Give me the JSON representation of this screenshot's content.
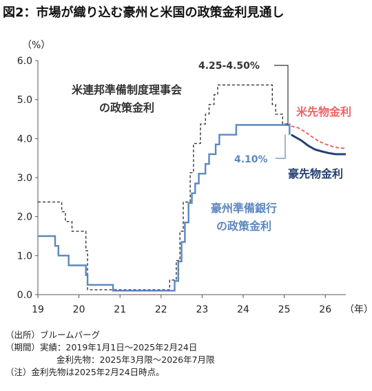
{
  "title": "図2：市場が織り込む豪州と米国の政策金利見通し",
  "chart_data": {
    "type": "line",
    "y_unit_label": "（%）",
    "x_unit_label": "（年）",
    "ylim": [
      0.0,
      6.0
    ],
    "xlim": [
      19.0,
      26.5
    ],
    "y_ticks": [
      "0.0",
      "1.0",
      "2.0",
      "3.0",
      "4.0",
      "5.0",
      "6.0"
    ],
    "x_ticks": [
      {
        "value": 19,
        "label": "19"
      },
      {
        "value": 20,
        "label": "20"
      },
      {
        "value": 21,
        "label": "21"
      },
      {
        "value": 22,
        "label": "22"
      },
      {
        "value": 23,
        "label": "23"
      },
      {
        "value": 24,
        "label": "24"
      },
      {
        "value": 25,
        "label": "25"
      },
      {
        "value": 26,
        "label": "26"
      }
    ],
    "grid": false,
    "series": [
      {
        "name": "米連邦準備制度理事会の政策金利",
        "style": "dashed",
        "color": "#333333",
        "step": true,
        "x": [
          19.0,
          19.58,
          19.67,
          19.83,
          20.17,
          20.21,
          22.21,
          22.37,
          22.46,
          22.54,
          22.71,
          22.79,
          22.96,
          23.08,
          23.17,
          23.29,
          23.38,
          23.58,
          24.71,
          24.79,
          24.96,
          25.15
        ],
        "y": [
          2.375,
          2.125,
          1.875,
          1.625,
          1.125,
          0.125,
          0.375,
          0.875,
          1.625,
          2.375,
          3.125,
          3.875,
          4.375,
          4.625,
          4.875,
          5.125,
          5.375,
          5.375,
          4.875,
          4.625,
          4.375,
          4.375
        ]
      },
      {
        "name": "豪州準備銀行の政策金利",
        "style": "solid",
        "color": "#5b87bf",
        "step": true,
        "x": [
          19.0,
          19.42,
          19.5,
          19.75,
          20.17,
          20.21,
          20.83,
          22.33,
          22.42,
          22.5,
          22.58,
          22.67,
          22.75,
          22.83,
          22.92,
          23.08,
          23.17,
          23.33,
          23.42,
          23.83,
          25.13
        ],
        "y": [
          1.5,
          1.25,
          1.0,
          0.75,
          0.5,
          0.25,
          0.1,
          0.35,
          0.85,
          1.35,
          1.85,
          2.35,
          2.6,
          2.85,
          3.1,
          3.35,
          3.6,
          3.85,
          4.1,
          4.35,
          4.1
        ]
      },
      {
        "name": "米先物金利",
        "style": "dashed",
        "color": "#f06262",
        "step": false,
        "x": [
          25.17,
          25.33,
          25.5,
          25.67,
          25.83,
          26.0,
          26.17,
          26.33,
          26.5
        ],
        "y": [
          4.32,
          4.28,
          4.18,
          4.05,
          3.94,
          3.86,
          3.8,
          3.76,
          3.75
        ]
      },
      {
        "name": "豪先物金利",
        "style": "solid",
        "color": "#25406f",
        "step": false,
        "x": [
          25.17,
          25.25,
          25.42,
          25.58,
          25.75,
          25.92,
          26.08,
          26.25,
          26.5
        ],
        "y": [
          4.1,
          4.05,
          3.95,
          3.82,
          3.72,
          3.67,
          3.63,
          3.6,
          3.6
        ]
      }
    ],
    "annotations": {
      "fed_range": "4.25-4.50%",
      "rba_value": "4.10%",
      "fed_label_line1": "米連邦準備制度理事会",
      "fed_label_line2": "の政策金利",
      "rba_label_line1": "豪州準備銀行",
      "rba_label_line2": "の政策金利",
      "us_futures_label": "米先物金利",
      "au_futures_label": "豪先物金利"
    }
  },
  "notes": {
    "source": "（出所）ブルームバーグ",
    "period_line1": "（期間）実績：2019年1月1日～2025年2月24日",
    "period_line2": "金利先物：2025年3月限～2026年7月限",
    "note": "（注）金利先物は2025年2月24日時点。"
  },
  "colors": {
    "fed": "#333333",
    "rba": "#5b87bf",
    "us_futures": "#f06262",
    "au_futures": "#25406f"
  }
}
